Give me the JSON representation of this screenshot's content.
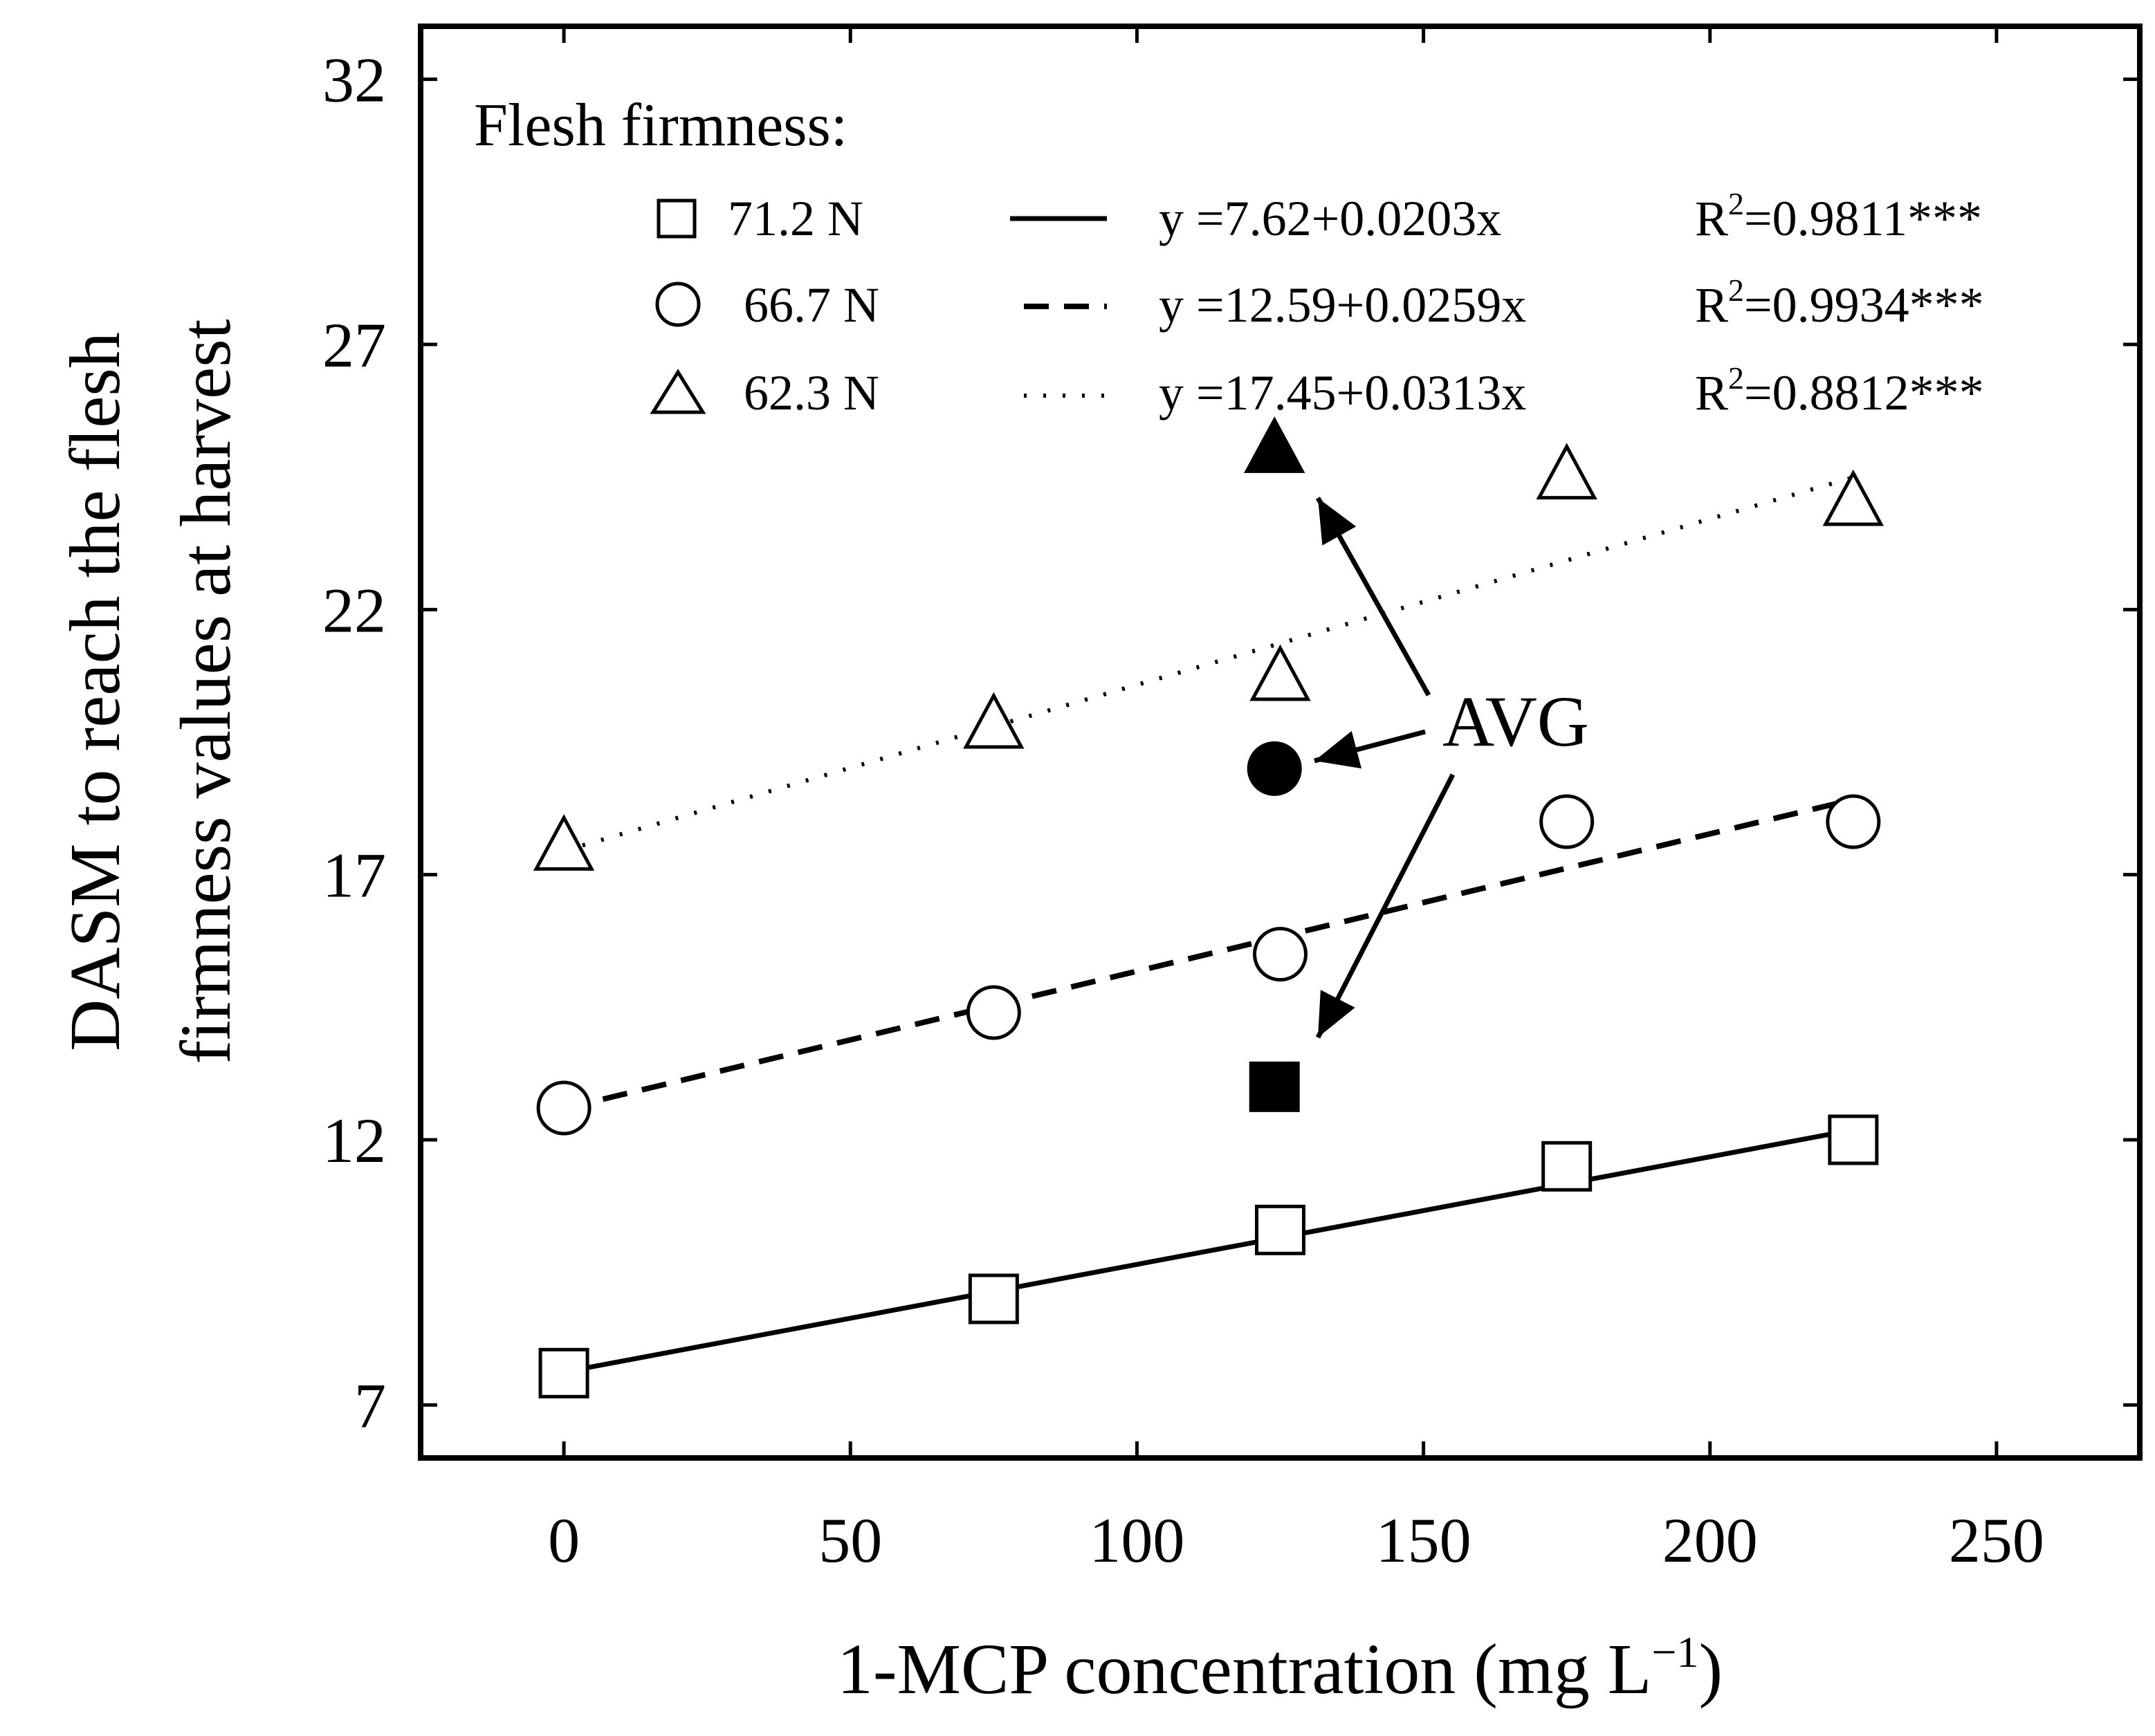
{
  "chart_data": {
    "type": "scatter",
    "xlabel": "1-MCP concentration (mg L",
    "xlabel_superscript": "−1",
    "xlabel_close": ")",
    "ylabel_line1": "DASM to reach the flesh",
    "ylabel_line2": "firmness values at harvest",
    "xlim": [
      -25,
      275
    ],
    "ylim": [
      6,
      33
    ],
    "x_ticks": [
      0,
      50,
      100,
      150,
      200,
      250
    ],
    "y_ticks": [
      7,
      12,
      17,
      22,
      27,
      32
    ],
    "grid": false,
    "legend": {
      "title": "Flesh firmness:",
      "placement": "top-left",
      "entries": [
        {
          "series": 0,
          "label": "71.2 N",
          "eq": "y =7.62+0.0203x",
          "r2_prefix": "R",
          "r2_sup": "2",
          "r2_value": "=0.9811***"
        },
        {
          "series": 1,
          "label": "66.7 N",
          "eq": "y =12.59+0.0259x",
          "r2_prefix": "R",
          "r2_sup": "2",
          "r2_value": "=0.9934***"
        },
        {
          "series": 2,
          "label": "62.3 N",
          "eq": "y =17.45+0.0313x",
          "r2_prefix": "R",
          "r2_sup": "2",
          "r2_value": "=0.8812***"
        }
      ]
    },
    "series": [
      {
        "name": "71.2 N",
        "marker": "square",
        "line": "solid",
        "x": [
          0,
          75,
          125,
          175,
          225
        ],
        "y": [
          7.6,
          9.0,
          10.3,
          11.5,
          12.0
        ],
        "fit": {
          "intercept": 7.62,
          "slope": 0.0203
        }
      },
      {
        "name": "66.7 N",
        "marker": "circle",
        "line": "dashed",
        "x": [
          0,
          75,
          125,
          175,
          225
        ],
        "y": [
          12.6,
          14.4,
          15.5,
          18.0,
          18.0
        ],
        "fit": {
          "intercept": 12.59,
          "slope": 0.0259
        }
      },
      {
        "name": "62.3 N",
        "marker": "triangle",
        "line": "dotted",
        "x": [
          0,
          75,
          125,
          175,
          225
        ],
        "y": [
          17.5,
          19.8,
          20.7,
          24.5,
          24.0
        ],
        "fit": {
          "intercept": 17.45,
          "slope": 0.0313
        }
      }
    ],
    "avg_points": [
      {
        "marker": "square",
        "x": 124,
        "y": 13.0
      },
      {
        "marker": "circle",
        "x": 124,
        "y": 19.0
      },
      {
        "marker": "triangle",
        "x": 124,
        "y": 25.0
      }
    ],
    "annotation": {
      "text": "AVG"
    },
    "colors": {
      "ink": "#000000",
      "background": "#ffffff"
    }
  }
}
